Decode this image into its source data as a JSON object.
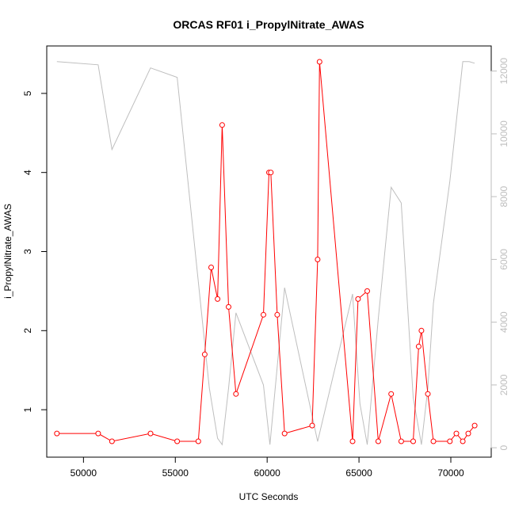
{
  "colors": {
    "primary_series": "#ff0000",
    "secondary_series": "#bebebe",
    "axis": "#000000",
    "secondary_axis": "#bebebe"
  },
  "chart_data": {
    "type": "line",
    "title": "ORCAS RF01 i_PropylNitrate_AWAS",
    "xlabel": "UTC Seconds",
    "ylabel": "i_PropylNitrate_AWAS",
    "xlim": [
      48000,
      72200
    ],
    "ylim": [
      0.4,
      5.6
    ],
    "y2lim": [
      -300,
      12800
    ],
    "x_ticks": [
      50000,
      55000,
      60000,
      65000,
      70000
    ],
    "x_tick_labels": [
      "50000",
      "55000",
      "60000",
      "65000",
      "70000"
    ],
    "y_ticks": [
      1,
      2,
      3,
      4,
      5
    ],
    "y_tick_labels": [
      "1",
      "2",
      "3",
      "4",
      "5"
    ],
    "y2_ticks": [
      0,
      2000,
      4000,
      6000,
      8000,
      10000,
      12000
    ],
    "y2_tick_labels": [
      "0",
      "2000",
      "4000",
      "6000",
      "8000",
      "10000",
      "12000"
    ],
    "grid": false,
    "legend": "none",
    "series": [
      {
        "axis": "left",
        "style": "line+points",
        "x": [
          48550,
          50800,
          51550,
          53650,
          55100,
          56250,
          56600,
          56950,
          57300,
          57550,
          57900,
          58300,
          59800,
          60100,
          60200,
          60550,
          60950,
          62450,
          62750,
          62850,
          64650,
          64950,
          65450,
          66050,
          66750,
          67300,
          67950,
          68250,
          68400,
          68750,
          69050,
          69950,
          70300,
          70650,
          70950,
          71300
        ],
        "y": [
          0.7,
          0.7,
          0.6,
          0.7,
          0.6,
          0.6,
          1.7,
          2.8,
          2.4,
          4.6,
          2.3,
          1.2,
          2.2,
          4.0,
          4.0,
          2.2,
          0.7,
          0.8,
          2.9,
          5.4,
          0.6,
          2.4,
          2.5,
          0.6,
          1.2,
          0.6,
          0.6,
          1.8,
          2.0,
          1.2,
          0.6,
          0.6,
          0.7,
          0.6,
          0.7,
          0.8
        ]
      },
      {
        "axis": "right",
        "style": "line",
        "x": [
          48550,
          50800,
          51550,
          53650,
          55100,
          56850,
          57300,
          57550,
          57900,
          58300,
          59800,
          60150,
          60950,
          62750,
          64650,
          65050,
          65450,
          66050,
          66750,
          67300,
          67950,
          68400,
          68750,
          69050,
          69950,
          70650,
          71000,
          71300
        ],
        "y": [
          12300,
          12200,
          9500,
          12100,
          11800,
          1900,
          300,
          100,
          1900,
          4300,
          2000,
          100,
          5100,
          200,
          4900,
          1400,
          100,
          4100,
          8300,
          7800,
          1600,
          100,
          1900,
          4600,
          8500,
          12300,
          12300,
          12250
        ]
      }
    ]
  }
}
